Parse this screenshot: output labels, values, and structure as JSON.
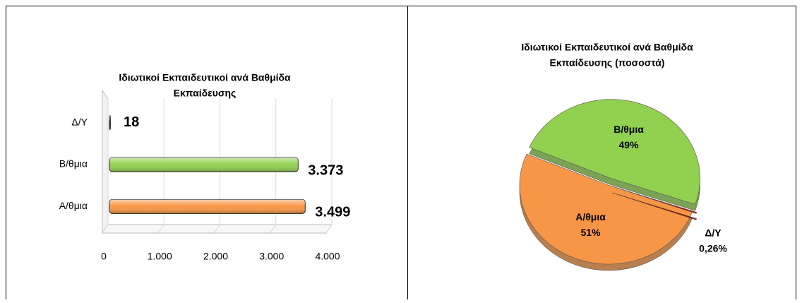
{
  "chart_data": [
    {
      "type": "hbar",
      "title": [
        "Ιδιωτικοί Εκπαιδευτικοί ανά Βαθμίδα",
        "Εκπαίδευσης"
      ],
      "categories": [
        "Δ/Υ",
        "Β/θμια",
        "Α/θμια"
      ],
      "values": [
        18,
        3373,
        3499
      ],
      "value_labels": [
        "18",
        "3.373",
        "3.499"
      ],
      "colors": [
        "#2f4f7f",
        "#92d050",
        "#f79646"
      ],
      "xlim": [
        0,
        4000
      ],
      "xticks": [
        0,
        {
          "value": 1000,
          "label": "1.000"
        },
        {
          "value": 2000,
          "label": "2.000"
        },
        {
          "value": 3000,
          "label": "3.000"
        },
        {
          "value": 4000,
          "label": "4.000"
        }
      ],
      "grid": true
    },
    {
      "type": "pie",
      "title": [
        "Ιδιωτικοί Εκπαιδευτικοί ανά Βαθμίδα",
        "Εκπαίδευσης (ποσοστά)"
      ],
      "categories": [
        "Α/θμια",
        "Β/θμια",
        "Δ/Υ"
      ],
      "values": [
        51,
        49,
        0.26
      ],
      "value_labels": [
        "51%",
        "49%",
        "0,26%"
      ],
      "colors": [
        "#f79646",
        "#92d050",
        "#c00000"
      ]
    }
  ]
}
